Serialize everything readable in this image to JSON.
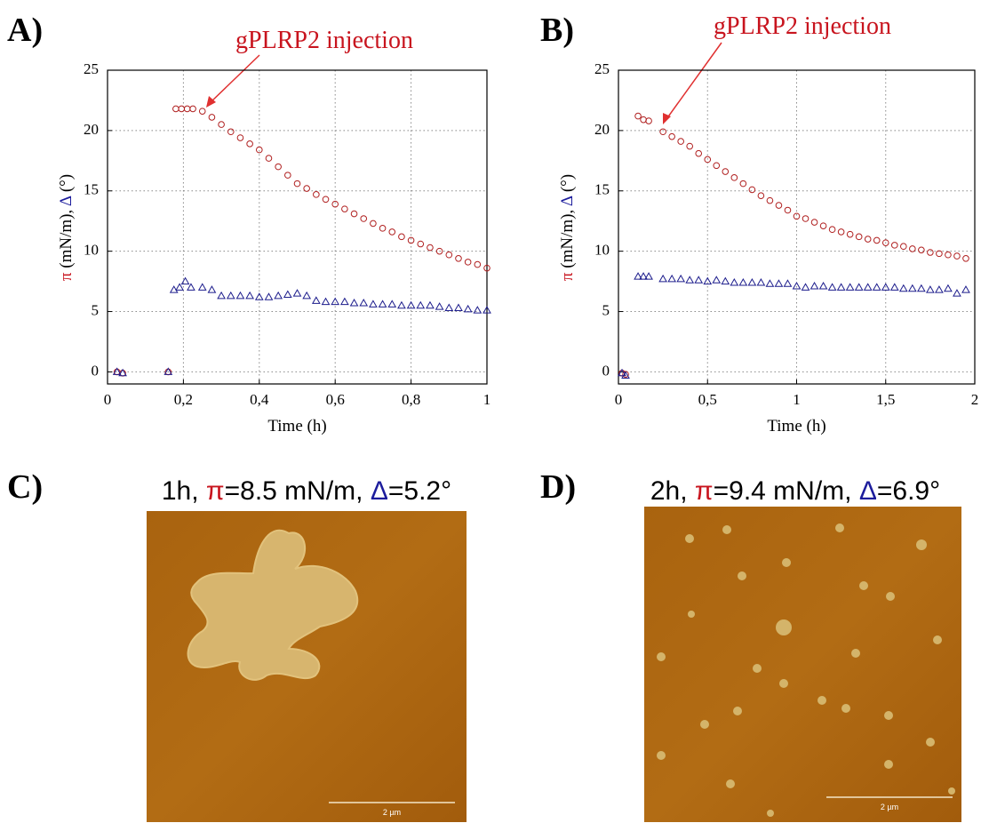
{
  "panel_labels": [
    "A)",
    "B)",
    "C)",
    "D)"
  ],
  "chart_data": [
    {
      "type": "scatter",
      "annotation": "gPLRP2 injection",
      "xlabel": "Time (h)",
      "ylabel": [
        "π",
        " (mN/m), ",
        "Δ",
        " (°)"
      ],
      "xlim": [
        0,
        1
      ],
      "ylim": [
        -1,
        25
      ],
      "xticks": [
        0,
        {
          "value": 0.2,
          "label": "0,2"
        },
        {
          "value": 0.4,
          "label": "0,4"
        },
        {
          "value": 0.6,
          "label": "0,6"
        },
        {
          "value": 0.8,
          "label": "0,8"
        },
        1
      ],
      "yticks": [
        0,
        5,
        10,
        15,
        20,
        25
      ],
      "grid": true,
      "series": [
        {
          "color": "#b02020",
          "marker": "circle",
          "x": [
            0.025,
            0.04,
            0.16,
            0.18,
            0.195,
            0.21,
            0.225,
            0.25,
            0.275,
            0.3,
            0.325,
            0.35,
            0.375,
            0.4,
            0.425,
            0.45,
            0.475,
            0.5,
            0.525,
            0.55,
            0.575,
            0.6,
            0.625,
            0.65,
            0.675,
            0.7,
            0.725,
            0.75,
            0.775,
            0.8,
            0.825,
            0.85,
            0.875,
            0.9,
            0.925,
            0.95,
            0.975,
            1.0
          ],
          "values": [
            0,
            -0.1,
            0,
            21.8,
            21.8,
            21.8,
            21.8,
            21.6,
            21.1,
            20.5,
            19.9,
            19.4,
            18.9,
            18.4,
            17.7,
            17.0,
            16.3,
            15.6,
            15.2,
            14.7,
            14.3,
            13.9,
            13.5,
            13.1,
            12.7,
            12.3,
            11.9,
            11.6,
            11.2,
            10.9,
            10.6,
            10.3,
            10.0,
            9.7,
            9.4,
            9.1,
            8.9,
            8.6
          ]
        },
        {
          "color": "#1c1c8c",
          "marker": "triangle",
          "x": [
            0.025,
            0.04,
            0.16,
            0.175,
            0.19,
            0.205,
            0.22,
            0.25,
            0.275,
            0.3,
            0.325,
            0.35,
            0.375,
            0.4,
            0.425,
            0.45,
            0.475,
            0.5,
            0.525,
            0.55,
            0.575,
            0.6,
            0.625,
            0.65,
            0.675,
            0.7,
            0.725,
            0.75,
            0.775,
            0.8,
            0.825,
            0.85,
            0.875,
            0.9,
            0.925,
            0.95,
            0.975,
            1.0
          ],
          "values": [
            0,
            -0.1,
            0,
            6.8,
            7.0,
            7.5,
            7.0,
            7.0,
            6.8,
            6.3,
            6.3,
            6.3,
            6.3,
            6.2,
            6.2,
            6.3,
            6.4,
            6.5,
            6.3,
            5.9,
            5.8,
            5.8,
            5.8,
            5.7,
            5.7,
            5.6,
            5.6,
            5.6,
            5.5,
            5.5,
            5.5,
            5.5,
            5.4,
            5.3,
            5.3,
            5.2,
            5.1,
            5.1
          ]
        }
      ]
    },
    {
      "type": "scatter",
      "annotation": "gPLRP2 injection",
      "xlabel": "Time (h)",
      "ylabel": [
        "π",
        " (mN/m), ",
        "Δ",
        " (°)"
      ],
      "xlim": [
        0,
        2
      ],
      "ylim": [
        -1,
        25
      ],
      "xticks": [
        0,
        {
          "value": 0.5,
          "label": "0,5"
        },
        1,
        {
          "value": 1.5,
          "label": "1,5"
        },
        2
      ],
      "yticks": [
        0,
        5,
        10,
        15,
        20,
        25
      ],
      "grid": true,
      "series": [
        {
          "color": "#b02020",
          "marker": "circle",
          "x": [
            0.02,
            0.04,
            0.11,
            0.14,
            0.17,
            0.25,
            0.3,
            0.35,
            0.4,
            0.45,
            0.5,
            0.55,
            0.6,
            0.65,
            0.7,
            0.75,
            0.8,
            0.85,
            0.9,
            0.95,
            1.0,
            1.05,
            1.1,
            1.15,
            1.2,
            1.25,
            1.3,
            1.35,
            1.4,
            1.45,
            1.5,
            1.55,
            1.6,
            1.65,
            1.7,
            1.75,
            1.8,
            1.85,
            1.9,
            1.95
          ],
          "values": [
            -0.1,
            -0.2,
            21.2,
            20.9,
            20.8,
            19.9,
            19.5,
            19.1,
            18.7,
            18.1,
            17.6,
            17.1,
            16.6,
            16.1,
            15.6,
            15.1,
            14.6,
            14.2,
            13.8,
            13.4,
            12.9,
            12.7,
            12.4,
            12.1,
            11.8,
            11.6,
            11.4,
            11.2,
            11.0,
            10.9,
            10.7,
            10.5,
            10.4,
            10.2,
            10.1,
            9.9,
            9.8,
            9.7,
            9.6,
            9.4
          ]
        },
        {
          "color": "#1c1c8c",
          "marker": "triangle",
          "x": [
            0.02,
            0.04,
            0.11,
            0.14,
            0.17,
            0.25,
            0.3,
            0.35,
            0.4,
            0.45,
            0.5,
            0.55,
            0.6,
            0.65,
            0.7,
            0.75,
            0.8,
            0.85,
            0.9,
            0.95,
            1.0,
            1.05,
            1.1,
            1.15,
            1.2,
            1.25,
            1.3,
            1.35,
            1.4,
            1.45,
            1.5,
            1.55,
            1.6,
            1.65,
            1.7,
            1.75,
            1.8,
            1.85,
            1.9,
            1.95
          ],
          "values": [
            -0.1,
            -0.3,
            7.9,
            7.9,
            7.9,
            7.7,
            7.7,
            7.7,
            7.6,
            7.6,
            7.5,
            7.6,
            7.5,
            7.4,
            7.4,
            7.4,
            7.4,
            7.3,
            7.3,
            7.3,
            7.1,
            7.0,
            7.1,
            7.1,
            7.0,
            7.0,
            7.0,
            7.0,
            7.0,
            7.0,
            7.0,
            7.0,
            6.9,
            6.9,
            6.9,
            6.8,
            6.8,
            6.9,
            6.5,
            6.8
          ]
        }
      ]
    }
  ],
  "images": [
    {
      "caption": [
        "1h, ",
        "π",
        "=8.5 mN/m, ",
        "Δ",
        "=5.2°"
      ],
      "scale_bar": "2 µm"
    },
    {
      "caption": [
        "2h, ",
        "π",
        "=9.4 mN/m, ",
        "Δ",
        "=6.9°"
      ],
      "scale_bar": "2 µm"
    }
  ]
}
